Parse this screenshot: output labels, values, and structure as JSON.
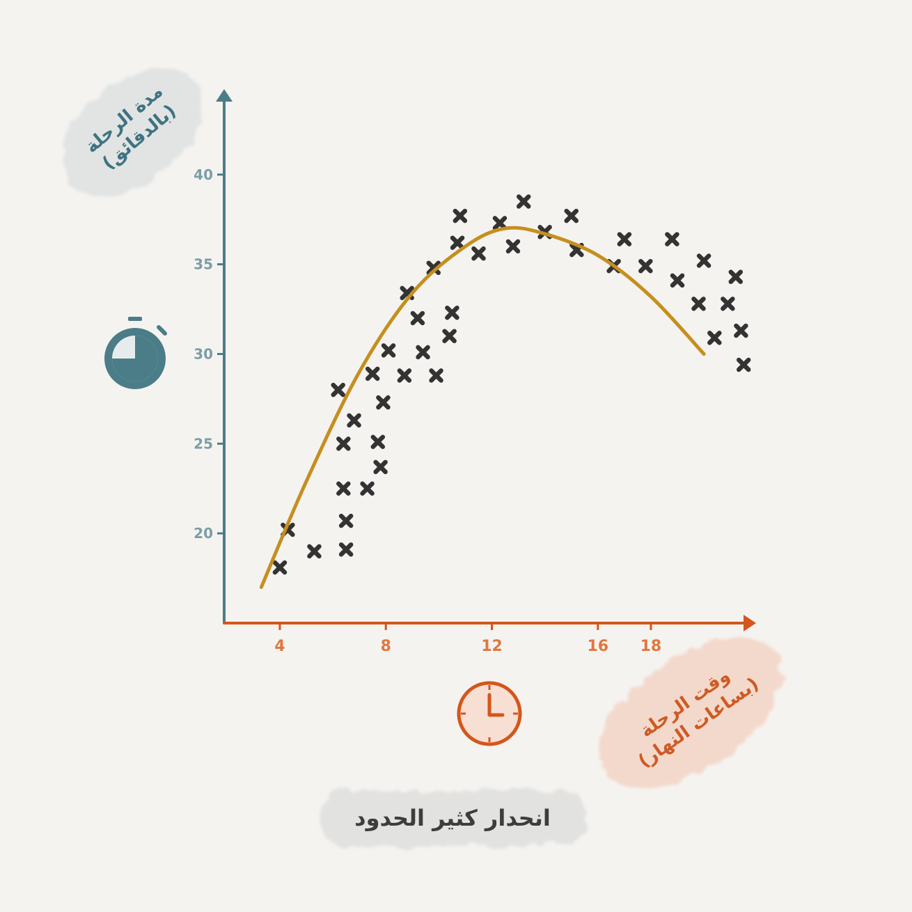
{
  "chart_data": {
    "type": "scatter",
    "title": "انحدار كثير الحدود",
    "xlabel": [
      "وقت الرحلة",
      "(بساعات النهار)"
    ],
    "ylabel": [
      "مدة الرحلة",
      "(بالدقائق)"
    ],
    "xlim": [
      1.9,
      21.6
    ],
    "ylim": [
      15.0,
      44.3
    ],
    "x_ticks": [
      4,
      8,
      12,
      16,
      18
    ],
    "x_tick_labels": [
      "4",
      "8",
      "12",
      "16",
      "18"
    ],
    "y_ticks": [
      20,
      25,
      30,
      35,
      40
    ],
    "y_tick_labels": [
      "20",
      "25",
      "30",
      "35",
      "40"
    ],
    "grid": false,
    "points": [
      {
        "x": 4.0,
        "y": 18.1
      },
      {
        "x": 4.3,
        "y": 20.2
      },
      {
        "x": 5.3,
        "y": 19.0
      },
      {
        "x": 6.2,
        "y": 28.0
      },
      {
        "x": 6.4,
        "y": 25.0
      },
      {
        "x": 6.4,
        "y": 22.5
      },
      {
        "x": 6.5,
        "y": 20.7
      },
      {
        "x": 6.5,
        "y": 19.1
      },
      {
        "x": 6.8,
        "y": 26.3
      },
      {
        "x": 7.3,
        "y": 22.5
      },
      {
        "x": 7.5,
        "y": 28.9
      },
      {
        "x": 7.7,
        "y": 25.1
      },
      {
        "x": 7.8,
        "y": 23.7
      },
      {
        "x": 7.9,
        "y": 27.3
      },
      {
        "x": 8.1,
        "y": 30.2
      },
      {
        "x": 8.7,
        "y": 28.8
      },
      {
        "x": 8.8,
        "y": 33.4
      },
      {
        "x": 9.2,
        "y": 32.0
      },
      {
        "x": 9.4,
        "y": 30.1
      },
      {
        "x": 9.8,
        "y": 34.8
      },
      {
        "x": 9.9,
        "y": 28.8
      },
      {
        "x": 10.4,
        "y": 31.0
      },
      {
        "x": 10.5,
        "y": 32.3
      },
      {
        "x": 10.7,
        "y": 36.2
      },
      {
        "x": 10.8,
        "y": 37.7
      },
      {
        "x": 11.5,
        "y": 35.6
      },
      {
        "x": 12.3,
        "y": 37.3
      },
      {
        "x": 12.8,
        "y": 36.0
      },
      {
        "x": 13.2,
        "y": 38.5
      },
      {
        "x": 14.0,
        "y": 36.8
      },
      {
        "x": 15.0,
        "y": 37.7
      },
      {
        "x": 15.2,
        "y": 35.8
      },
      {
        "x": 16.6,
        "y": 34.9
      },
      {
        "x": 17.0,
        "y": 36.4
      },
      {
        "x": 17.8,
        "y": 34.9
      },
      {
        "x": 18.8,
        "y": 36.4
      },
      {
        "x": 19.0,
        "y": 34.1
      },
      {
        "x": 19.8,
        "y": 32.8
      },
      {
        "x": 20.0,
        "y": 35.2
      },
      {
        "x": 20.4,
        "y": 30.9
      },
      {
        "x": 20.9,
        "y": 32.8
      },
      {
        "x": 21.2,
        "y": 34.3
      },
      {
        "x": 21.4,
        "y": 31.3
      },
      {
        "x": 21.5,
        "y": 29.4
      }
    ],
    "fit_curve": {
      "type": "polynomial",
      "x": [
        3.3,
        5.0,
        7.0,
        9.0,
        11.0,
        12.5,
        14.0,
        16.0,
        18.0,
        20.0
      ],
      "y": [
        17.0,
        22.9,
        29.0,
        33.4,
        36.0,
        37.0,
        36.7,
        35.5,
        33.2,
        30.0
      ]
    },
    "colors": {
      "y_axis": "#4a7d88",
      "x_axis": "#d4561c",
      "points": "#333333",
      "fit_curve": "#c58f1f",
      "y_tick_labels": "#7a9ea6",
      "x_tick_labels": "#e0773f"
    },
    "icons": [
      "stopwatch-icon",
      "clock-icon"
    ]
  }
}
